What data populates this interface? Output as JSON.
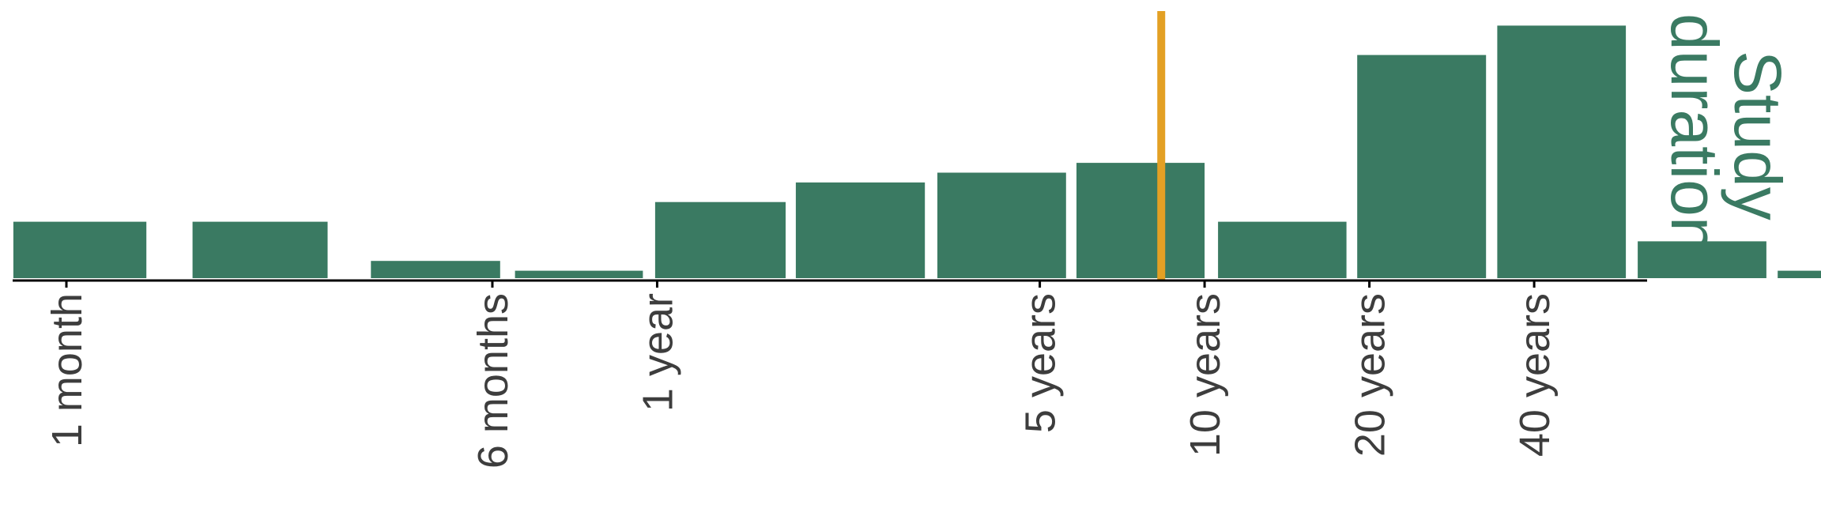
{
  "chart_data": {
    "type": "bar",
    "title_lines": [
      "Study",
      "duration"
    ],
    "bar_color": "#3a7a62",
    "marker_color": "#e3a024",
    "axis_color": "#000000",
    "label_color": "#3d3d3d",
    "x_scale": "log2",
    "x_unit": "months",
    "bins": [
      {
        "from_months": 0.8,
        "to_months": 1.4,
        "value": 3
      },
      {
        "from_months": 1.7,
        "to_months": 3.0,
        "value": 3
      },
      {
        "from_months": 3.6,
        "to_months": 6.2,
        "value": 1
      },
      {
        "from_months": 6.6,
        "to_months": 11.3,
        "value": 0.5
      },
      {
        "from_months": 11.9,
        "to_months": 20.6,
        "value": 4
      },
      {
        "from_months": 21.5,
        "to_months": 37.0,
        "value": 5
      },
      {
        "from_months": 39.0,
        "to_months": 67.0,
        "value": 5.5
      },
      {
        "from_months": 70.0,
        "to_months": 120.0,
        "value": 6
      },
      {
        "from_months": 127.0,
        "to_months": 218.0,
        "value": 3
      },
      {
        "from_months": 228.0,
        "to_months": 392.0,
        "value": 11.5
      },
      {
        "from_months": 411.0,
        "to_months": 706.0,
        "value": 13
      },
      {
        "from_months": 742.0,
        "to_months": 1275.0,
        "value": 2
      },
      {
        "from_months": 1337.0,
        "to_months": 2298.0,
        "value": 0.5
      }
    ],
    "marker_months": 100,
    "ticks": [
      {
        "months": 1,
        "label": "1 month"
      },
      {
        "months": 6,
        "label": "6 months"
      },
      {
        "months": 12,
        "label": "1 year"
      },
      {
        "months": 60,
        "label": "5 years"
      },
      {
        "months": 120,
        "label": "10 years"
      },
      {
        "months": 240,
        "label": "20 years"
      },
      {
        "months": 480,
        "label": "40 years"
      }
    ],
    "ylim": [
      0,
      13.5
    ]
  }
}
